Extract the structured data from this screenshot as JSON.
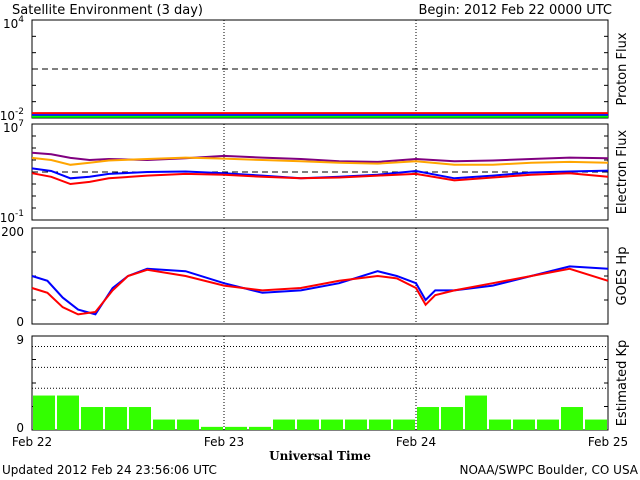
{
  "header": {
    "title": "Satellite Environment (3 day)",
    "begin": "Begin:  2012 Feb 22 0000 UTC"
  },
  "footer": {
    "updated": "Updated 2012 Feb 24 23:56:06 UTC",
    "source": "NOAA/SWPC Boulder, CO USA"
  },
  "chart_data": [
    {
      "type": "line",
      "ylabel": "Proton Flux",
      "yscale": "log",
      "ylim": [
        0.01,
        10000
      ],
      "tick_labels": [
        {
          "base": "10",
          "exp": "4"
        },
        {
          "base": "10",
          "exp": "-2"
        }
      ],
      "threshold": 10,
      "series": [
        {
          "color": "#ff0000",
          "x": [
            0,
            0.5,
            1,
            1.5,
            2,
            2.5,
            3
          ],
          "y": [
            0.02,
            0.02,
            0.02,
            0.02,
            0.02,
            0.02,
            0.02
          ]
        },
        {
          "color": "#0000ff",
          "x": [
            0,
            0.5,
            1,
            1.5,
            2,
            2.5,
            3
          ],
          "y": [
            0.015,
            0.015,
            0.015,
            0.015,
            0.015,
            0.015,
            0.015
          ]
        },
        {
          "color": "#00ff00",
          "x": [
            0,
            0.5,
            1,
            1.5,
            2,
            2.5,
            3
          ],
          "y": [
            0.012,
            0.012,
            0.012,
            0.012,
            0.012,
            0.012,
            0.012
          ]
        }
      ]
    },
    {
      "type": "line",
      "ylabel": "Electron Flux",
      "yscale": "log",
      "ylim": [
        0.1,
        10000000
      ],
      "tick_labels": [
        {
          "base": "10",
          "exp": "7"
        },
        {
          "base": "10",
          "exp": "-1"
        }
      ],
      "threshold": 1000,
      "series": [
        {
          "color": "#800080",
          "x": [
            0,
            0.1,
            0.2,
            0.3,
            0.4,
            0.6,
            0.8,
            1.0,
            1.2,
            1.4,
            1.6,
            1.8,
            2.0,
            2.2,
            2.4,
            2.6,
            2.8,
            3.0
          ],
          "y": [
            40000,
            30000,
            15000,
            10000,
            12000,
            10000,
            14000,
            22000,
            16000,
            12000,
            8000,
            7000,
            12000,
            8000,
            9000,
            12000,
            16000,
            14000
          ]
        },
        {
          "color": "#ffa500",
          "x": [
            0,
            0.1,
            0.2,
            0.3,
            0.4,
            0.6,
            0.8,
            1.0,
            1.2,
            1.4,
            1.6,
            1.8,
            2.0,
            2.2,
            2.4,
            2.6,
            2.8,
            3.0
          ],
          "y": [
            15000,
            10000,
            4000,
            6000,
            9000,
            12000,
            16000,
            13000,
            10000,
            8000,
            6000,
            5000,
            8000,
            4000,
            4000,
            6000,
            7000,
            6000
          ]
        },
        {
          "color": "#0000ff",
          "x": [
            0,
            0.1,
            0.2,
            0.3,
            0.4,
            0.6,
            0.8,
            1.0,
            1.2,
            1.4,
            1.6,
            1.8,
            2.0,
            2.2,
            2.4,
            2.6,
            2.8,
            3.0
          ],
          "y": [
            2000,
            1200,
            300,
            400,
            700,
            1000,
            1100,
            800,
            500,
            300,
            400,
            600,
            1200,
            300,
            500,
            900,
            1100,
            1300
          ]
        },
        {
          "color": "#ff0000",
          "x": [
            0,
            0.1,
            0.2,
            0.3,
            0.4,
            0.6,
            0.8,
            1.0,
            1.2,
            1.4,
            1.6,
            1.8,
            2.0,
            2.2,
            2.4,
            2.6,
            2.8,
            3.0
          ],
          "y": [
            800,
            400,
            100,
            150,
            300,
            500,
            700,
            600,
            400,
            300,
            350,
            500,
            700,
            200,
            350,
            600,
            800,
            400
          ]
        }
      ]
    },
    {
      "type": "line",
      "ylabel": "GOES Hp",
      "ylim": [
        0,
        200
      ],
      "tick_labels": [
        "200",
        "0"
      ],
      "series": [
        {
          "color": "#0000ff",
          "x": [
            0,
            0.08,
            0.16,
            0.24,
            0.33,
            0.42,
            0.5,
            0.6,
            0.8,
            1.0,
            1.2,
            1.4,
            1.6,
            1.8,
            1.9,
            2.0,
            2.05,
            2.1,
            2.2,
            2.4,
            2.6,
            2.8,
            3.0
          ],
          "y": [
            100,
            90,
            55,
            30,
            20,
            75,
            100,
            115,
            110,
            85,
            65,
            70,
            85,
            110,
            100,
            85,
            50,
            70,
            70,
            80,
            100,
            120,
            115
          ]
        },
        {
          "color": "#ff0000",
          "x": [
            0,
            0.08,
            0.16,
            0.24,
            0.33,
            0.42,
            0.5,
            0.6,
            0.8,
            1.0,
            1.2,
            1.4,
            1.6,
            1.8,
            1.9,
            2.0,
            2.05,
            2.1,
            2.2,
            2.4,
            2.6,
            2.8,
            3.0
          ],
          "y": [
            75,
            65,
            35,
            20,
            25,
            70,
            100,
            113,
            100,
            80,
            70,
            75,
            90,
            100,
            95,
            75,
            40,
            60,
            70,
            85,
            100,
            115,
            90
          ]
        }
      ]
    },
    {
      "type": "bar",
      "ylabel": "Estimated Kp",
      "ylim": [
        0,
        9
      ],
      "tick_labels": [
        "9",
        "0"
      ],
      "bar_color": "#33ff00",
      "dotted_levels": [
        4,
        6,
        8
      ],
      "values": [
        3.3,
        3.3,
        2.2,
        2.2,
        2.2,
        1.0,
        1.0,
        0.3,
        0.3,
        0.3,
        1.0,
        1.0,
        1.0,
        1.0,
        1.0,
        1.0,
        2.2,
        2.2,
        3.3,
        1.0,
        1.0,
        1.0,
        2.2,
        1.0
      ]
    }
  ],
  "x_axis": {
    "label": "Universal Time",
    "range": [
      0,
      3
    ],
    "tick_labels": [
      "Feb 22",
      "Feb 23",
      "Feb 24",
      "Feb 25"
    ]
  }
}
